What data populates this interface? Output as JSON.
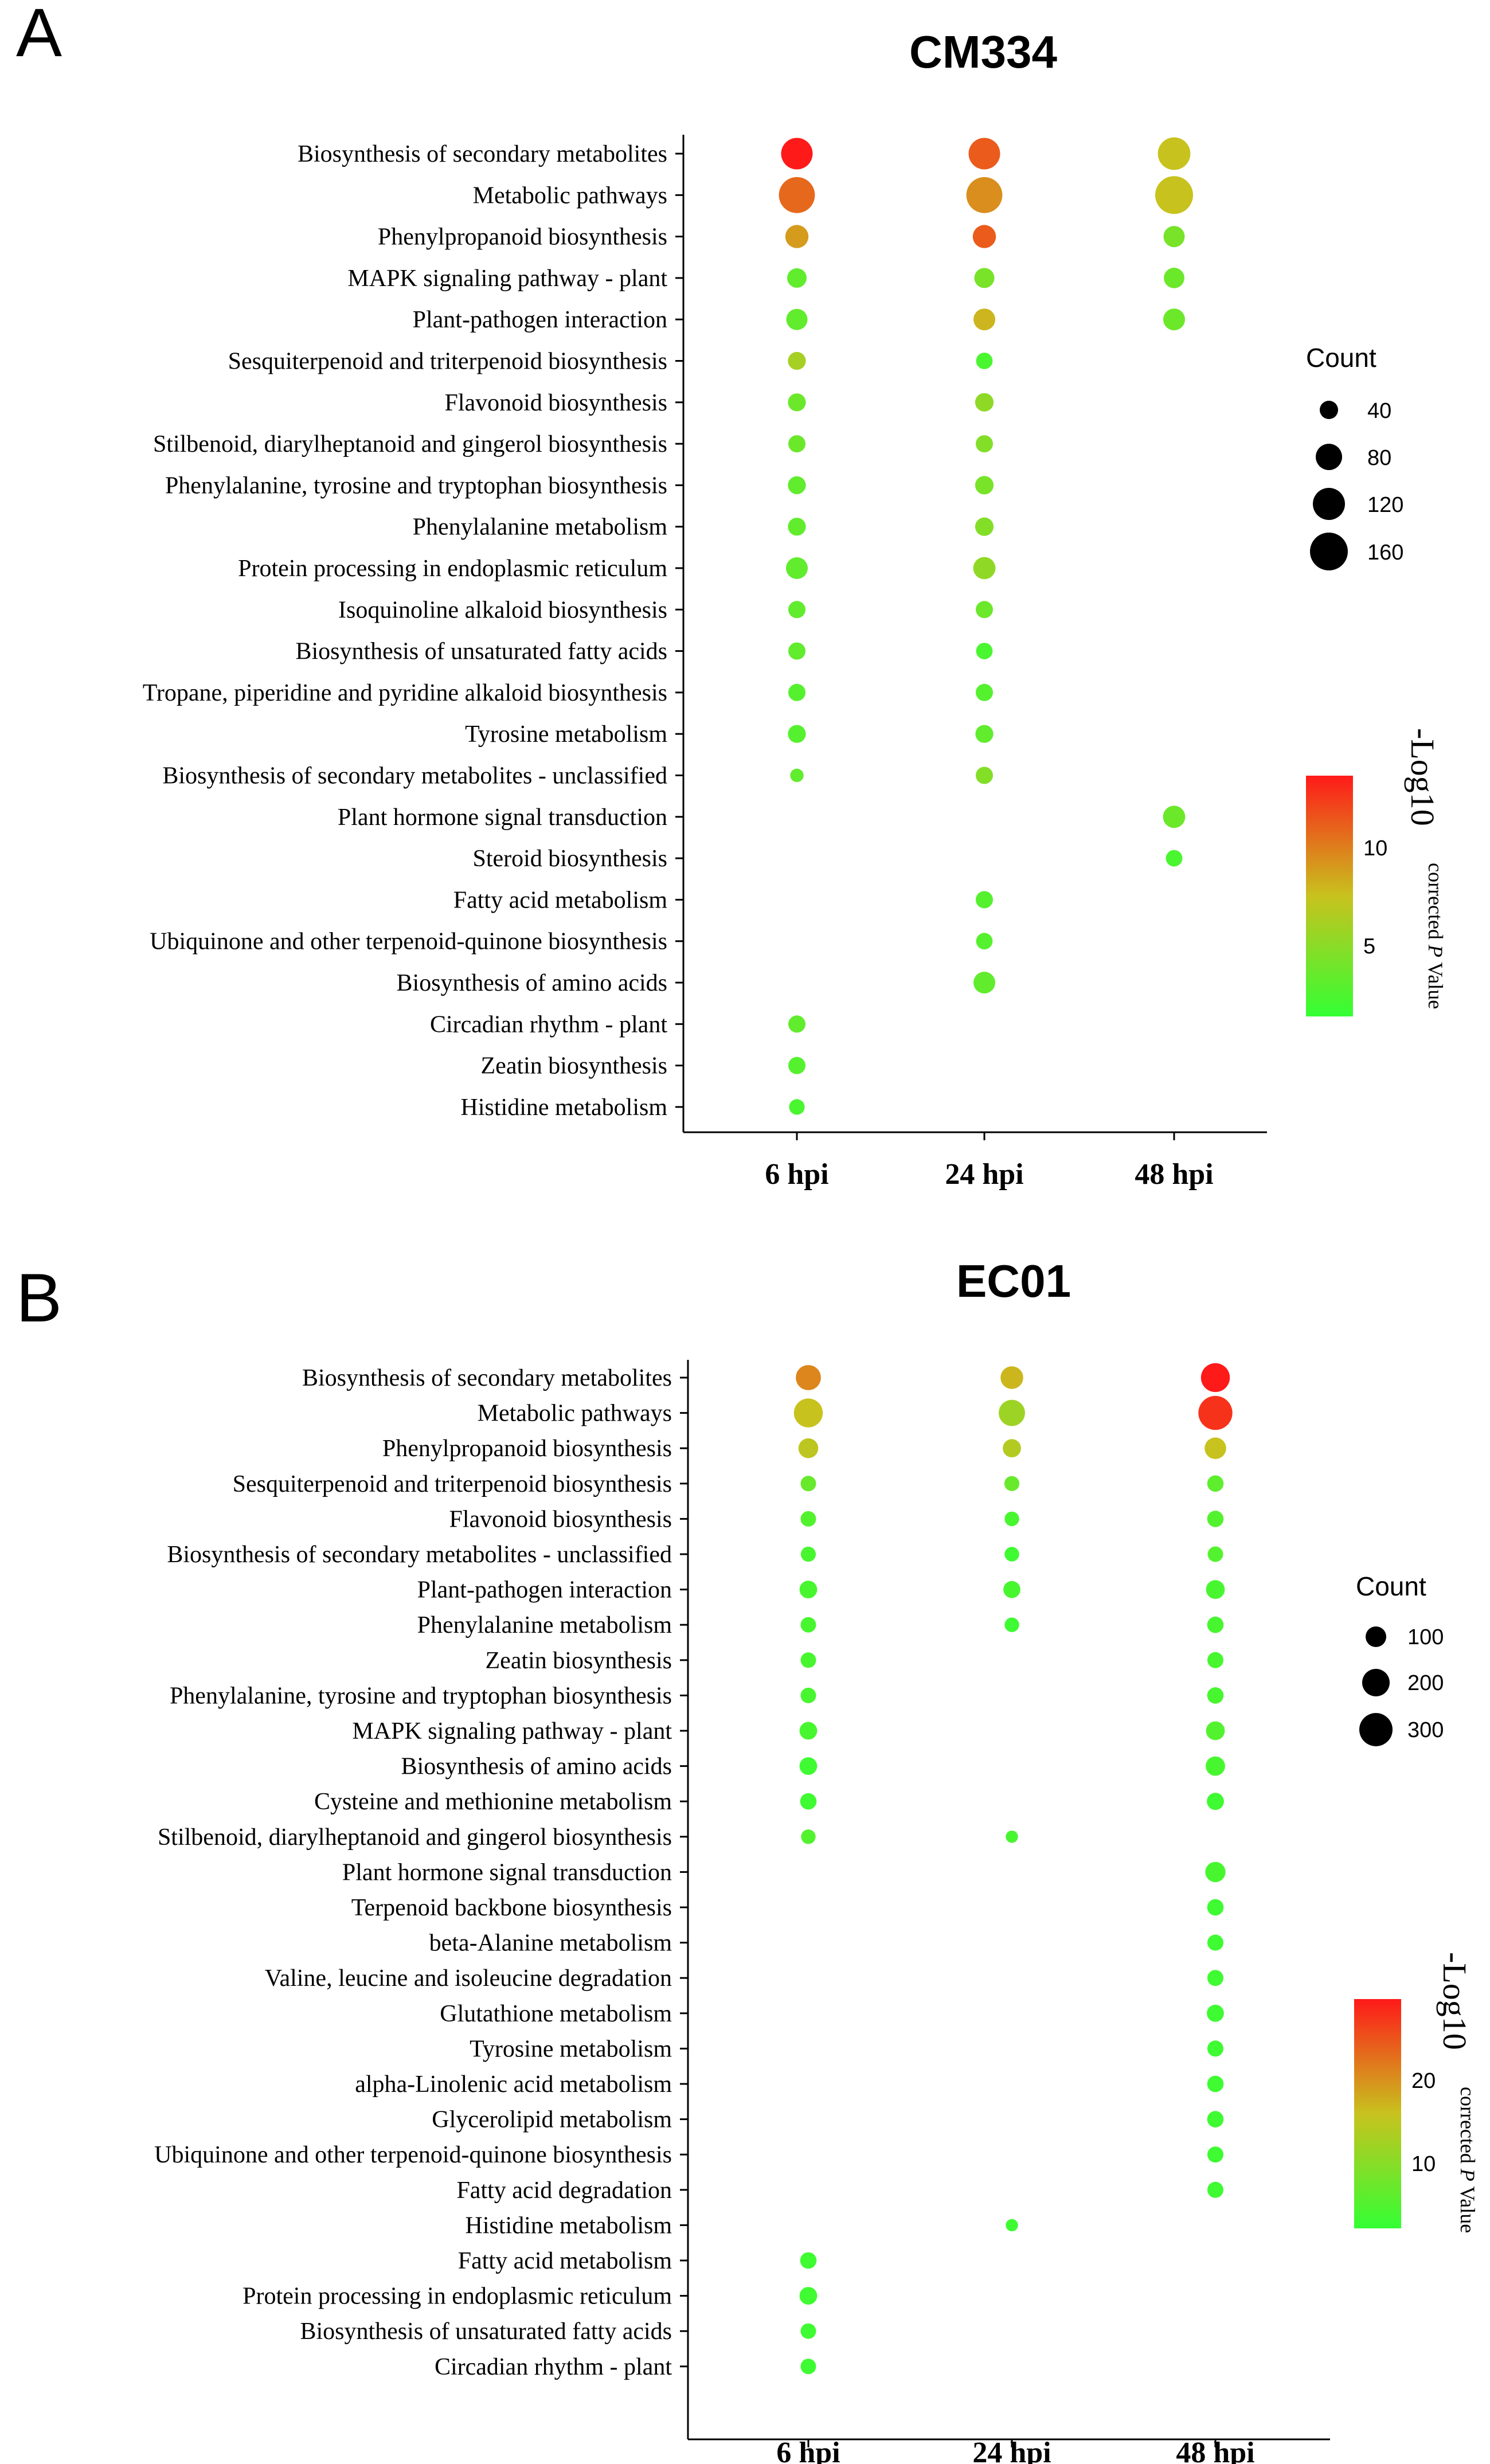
{
  "panels": [
    {
      "letter": "A",
      "title": "CM334",
      "legend_size_title": "Count",
      "legend_size_values": [
        40,
        80,
        120,
        160
      ],
      "colorbar_title": "-Log10",
      "colorbar_subtitle_pre": "corrected ",
      "colorbar_subtitle_p": "P",
      "colorbar_subtitle_post": " Value",
      "colorbar_ticks": [
        5,
        10
      ]
    },
    {
      "letter": "B",
      "title": "EC01",
      "legend_size_title": "Count",
      "legend_size_values": [
        100,
        200,
        300
      ],
      "colorbar_title": "-Log10",
      "colorbar_subtitle_pre": "corrected ",
      "colorbar_subtitle_p": "P",
      "colorbar_subtitle_post": " Value",
      "colorbar_ticks": [
        10,
        20
      ]
    }
  ],
  "colors": {
    "low": "#33ff33",
    "mid": "#c8c21e",
    "high": "#ff1a1a",
    "axis": "#000000"
  },
  "chart_data": [
    {
      "type": "scatter",
      "subtype": "bubble",
      "title": "CM334",
      "x": [
        "6 hpi",
        "24 hpi",
        "48 hpi"
      ],
      "size_label": "Count",
      "color_label": "-Log10 corrected P Value",
      "color_range": [
        1,
        14
      ],
      "size_range": [
        10,
        170
      ],
      "categories": [
        "Biosynthesis of secondary metabolites",
        "Metabolic pathways",
        "Phenylpropanoid biosynthesis",
        "MAPK signaling pathway - plant",
        "Plant-pathogen interaction",
        "Sesquiterpenoid and triterpenoid biosynthesis",
        "Flavonoid biosynthesis",
        "Stilbenoid, diarylheptanoid and gingerol biosynthesis",
        "Phenylalanine, tyrosine and tryptophan biosynthesis",
        "Phenylalanine metabolism",
        "Protein processing in endoplasmic reticulum",
        "Isoquinoline alkaloid biosynthesis",
        "Biosynthesis of unsaturated fatty acids",
        "Tropane, piperidine and pyridine alkaloid biosynthesis",
        "Tyrosine metabolism",
        "Biosynthesis of secondary metabolites - unclassified",
        "Plant hormone signal transduction",
        "Steroid biosynthesis",
        "Fatty acid metabolism",
        "Ubiquinone and other terpenoid-quinone biosynthesis",
        "Biosynthesis of amino acids",
        "Circadian rhythm - plant",
        "Zeatin biosynthesis",
        "Histidine metabolism"
      ],
      "points": [
        {
          "pathway": "Biosynthesis of secondary metabolites",
          "x": "6 hpi",
          "count": 105,
          "logp": 14
        },
        {
          "pathway": "Biosynthesis of secondary metabolites",
          "x": "24 hpi",
          "count": 105,
          "logp": 11.5
        },
        {
          "pathway": "Biosynthesis of secondary metabolites",
          "x": "48 hpi",
          "count": 115,
          "logp": 7.5
        },
        {
          "pathway": "Metabolic pathways",
          "x": "6 hpi",
          "count": 150,
          "logp": 11
        },
        {
          "pathway": "Metabolic pathways",
          "x": "24 hpi",
          "count": 150,
          "logp": 9.5
        },
        {
          "pathway": "Metabolic pathways",
          "x": "48 hpi",
          "count": 170,
          "logp": 7.5
        },
        {
          "pathway": "Phenylpropanoid biosynthesis",
          "x": "6 hpi",
          "count": 45,
          "logp": 9
        },
        {
          "pathway": "Phenylpropanoid biosynthesis",
          "x": "24 hpi",
          "count": 45,
          "logp": 11.5
        },
        {
          "pathway": "Phenylpropanoid biosynthesis",
          "x": "48 hpi",
          "count": 35,
          "logp": 4
        },
        {
          "pathway": "MAPK signaling pathway - plant",
          "x": "6 hpi",
          "count": 28,
          "logp": 3
        },
        {
          "pathway": "MAPK signaling pathway - plant",
          "x": "24 hpi",
          "count": 30,
          "logp": 4
        },
        {
          "pathway": "MAPK signaling pathway - plant",
          "x": "48 hpi",
          "count": 32,
          "logp": 3.5
        },
        {
          "pathway": "Plant-pathogen interaction",
          "x": "6 hpi",
          "count": 35,
          "logp": 3
        },
        {
          "pathway": "Plant-pathogen interaction",
          "x": "24 hpi",
          "count": 38,
          "logp": 8
        },
        {
          "pathway": "Plant-pathogen interaction",
          "x": "48 hpi",
          "count": 38,
          "logp": 3.5
        },
        {
          "pathway": "Sesquiterpenoid and triterpenoid biosynthesis",
          "x": "6 hpi",
          "count": 22,
          "logp": 6
        },
        {
          "pathway": "Sesquiterpenoid and triterpenoid biosynthesis",
          "x": "24 hpi",
          "count": 18,
          "logp": 2
        },
        {
          "pathway": "Flavonoid biosynthesis",
          "x": "6 hpi",
          "count": 22,
          "logp": 3.5
        },
        {
          "pathway": "Flavonoid biosynthesis",
          "x": "24 hpi",
          "count": 24,
          "logp": 5
        },
        {
          "pathway": "Stilbenoid, diarylheptanoid and gingerol biosynthesis",
          "x": "6 hpi",
          "count": 20,
          "logp": 3.5
        },
        {
          "pathway": "Stilbenoid, diarylheptanoid and gingerol biosynthesis",
          "x": "24 hpi",
          "count": 20,
          "logp": 4.5
        },
        {
          "pathway": "Phenylalanine, tyrosine and tryptophan biosynthesis",
          "x": "6 hpi",
          "count": 22,
          "logp": 3
        },
        {
          "pathway": "Phenylalanine, tyrosine and tryptophan biosynthesis",
          "x": "24 hpi",
          "count": 24,
          "logp": 4
        },
        {
          "pathway": "Phenylalanine metabolism",
          "x": "6 hpi",
          "count": 22,
          "logp": 3
        },
        {
          "pathway": "Phenylalanine metabolism",
          "x": "24 hpi",
          "count": 24,
          "logp": 4.5
        },
        {
          "pathway": "Protein processing in endoplasmic reticulum",
          "x": "6 hpi",
          "count": 38,
          "logp": 3
        },
        {
          "pathway": "Protein processing in endoplasmic reticulum",
          "x": "24 hpi",
          "count": 40,
          "logp": 5
        },
        {
          "pathway": "Isoquinoline alkaloid biosynthesis",
          "x": "6 hpi",
          "count": 20,
          "logp": 3
        },
        {
          "pathway": "Isoquinoline alkaloid biosynthesis",
          "x": "24 hpi",
          "count": 20,
          "logp": 3.5
        },
        {
          "pathway": "Biosynthesis of unsaturated fatty acids",
          "x": "6 hpi",
          "count": 20,
          "logp": 3
        },
        {
          "pathway": "Biosynthesis of unsaturated fatty acids",
          "x": "24 hpi",
          "count": 18,
          "logp": 2
        },
        {
          "pathway": "Tropane, piperidine and pyridine alkaloid biosynthesis",
          "x": "6 hpi",
          "count": 20,
          "logp": 2.5
        },
        {
          "pathway": "Tropane, piperidine and pyridine alkaloid biosynthesis",
          "x": "24 hpi",
          "count": 20,
          "logp": 2.5
        },
        {
          "pathway": "Tyrosine metabolism",
          "x": "6 hpi",
          "count": 22,
          "logp": 2.5
        },
        {
          "pathway": "Tyrosine metabolism",
          "x": "24 hpi",
          "count": 22,
          "logp": 3
        },
        {
          "pathway": "Biosynthesis of secondary metabolites - unclassified",
          "x": "6 hpi",
          "count": 12,
          "logp": 3
        },
        {
          "pathway": "Biosynthesis of secondary metabolites - unclassified",
          "x": "24 hpi",
          "count": 20,
          "logp": 4.5
        },
        {
          "pathway": "Plant hormone signal transduction",
          "x": "48 hpi",
          "count": 40,
          "logp": 3.5
        },
        {
          "pathway": "Steroid biosynthesis",
          "x": "48 hpi",
          "count": 18,
          "logp": 2
        },
        {
          "pathway": "Fatty acid metabolism",
          "x": "24 hpi",
          "count": 20,
          "logp": 2.5
        },
        {
          "pathway": "Ubiquinone and other terpenoid-quinone biosynthesis",
          "x": "24 hpi",
          "count": 18,
          "logp": 2.5
        },
        {
          "pathway": "Biosynthesis of amino acids",
          "x": "24 hpi",
          "count": 38,
          "logp": 3
        },
        {
          "pathway": "Circadian rhythm - plant",
          "x": "6 hpi",
          "count": 20,
          "logp": 3
        },
        {
          "pathway": "Zeatin biosynthesis",
          "x": "6 hpi",
          "count": 20,
          "logp": 2.5
        },
        {
          "pathway": "Histidine metabolism",
          "x": "6 hpi",
          "count": 16,
          "logp": 2
        }
      ]
    },
    {
      "type": "scatter",
      "subtype": "bubble",
      "title": "EC01",
      "x": [
        "6 hpi",
        "24 hpi",
        "48 hpi"
      ],
      "size_label": "Count",
      "color_label": "-Log10 corrected P Value",
      "color_range": [
        1,
        29
      ],
      "size_range": [
        10,
        330
      ],
      "categories": [
        "Biosynthesis of secondary metabolites",
        "Metabolic pathways",
        "Phenylpropanoid biosynthesis",
        "Sesquiterpenoid and triterpenoid biosynthesis",
        "Flavonoid biosynthesis",
        "Biosynthesis of secondary metabolites - unclassified",
        "Plant-pathogen interaction",
        "Phenylalanine metabolism",
        "Zeatin biosynthesis",
        "Phenylalanine, tyrosine and tryptophan biosynthesis",
        "MAPK signaling pathway - plant",
        "Biosynthesis of amino acids",
        "Cysteine and methionine metabolism",
        "Stilbenoid, diarylheptanoid and gingerol biosynthesis",
        "Plant hormone signal transduction",
        "Terpenoid backbone biosynthesis",
        "beta-Alanine metabolism",
        "Valine, leucine and isoleucine degradation",
        "Glutathione metabolism",
        "Tyrosine metabolism",
        "alpha-Linolenic acid metabolism",
        "Glycerolipid metabolism",
        "Ubiquinone and other terpenoid-quinone biosynthesis",
        "Fatty acid degradation",
        "Histidine metabolism",
        "Fatty acid metabolism",
        "Protein processing in endoplasmic reticulum",
        "Biosynthesis of unsaturated fatty acids",
        "Circadian rhythm - plant"
      ],
      "points": [
        {
          "pathway": "Biosynthesis of secondary metabolites",
          "x": "6 hpi",
          "count": 130,
          "logp": 20
        },
        {
          "pathway": "Biosynthesis of secondary metabolites",
          "x": "24 hpi",
          "count": 95,
          "logp": 16
        },
        {
          "pathway": "Biosynthesis of secondary metabolites",
          "x": "48 hpi",
          "count": 200,
          "logp": 29
        },
        {
          "pathway": "Metabolic pathways",
          "x": "6 hpi",
          "count": 200,
          "logp": 15
        },
        {
          "pathway": "Metabolic pathways",
          "x": "24 hpi",
          "count": 150,
          "logp": 11
        },
        {
          "pathway": "Metabolic pathways",
          "x": "48 hpi",
          "count": 320,
          "logp": 27
        },
        {
          "pathway": "Phenylpropanoid biosynthesis",
          "x": "6 hpi",
          "count": 60,
          "logp": 14
        },
        {
          "pathway": "Phenylpropanoid biosynthesis",
          "x": "24 hpi",
          "count": 45,
          "logp": 13
        },
        {
          "pathway": "Phenylpropanoid biosynthesis",
          "x": "48 hpi",
          "count": 80,
          "logp": 15
        },
        {
          "pathway": "Sesquiterpenoid and triterpenoid biosynthesis",
          "x": "6 hpi",
          "count": 25,
          "logp": 6
        },
        {
          "pathway": "Sesquiterpenoid and triterpenoid biosynthesis",
          "x": "24 hpi",
          "count": 22,
          "logp": 6
        },
        {
          "pathway": "Sesquiterpenoid and triterpenoid biosynthesis",
          "x": "48 hpi",
          "count": 30,
          "logp": 5
        },
        {
          "pathway": "Flavonoid biosynthesis",
          "x": "6 hpi",
          "count": 25,
          "logp": 4
        },
        {
          "pathway": "Flavonoid biosynthesis",
          "x": "24 hpi",
          "count": 20,
          "logp": 3
        },
        {
          "pathway": "Flavonoid biosynthesis",
          "x": "48 hpi",
          "count": 30,
          "logp": 4
        },
        {
          "pathway": "Biosynthesis of secondary metabolites - unclassified",
          "x": "6 hpi",
          "count": 22,
          "logp": 3
        },
        {
          "pathway": "Biosynthesis of secondary metabolites - unclassified",
          "x": "24 hpi",
          "count": 20,
          "logp": 2
        },
        {
          "pathway": "Biosynthesis of secondary metabolites - unclassified",
          "x": "48 hpi",
          "count": 25,
          "logp": 4
        },
        {
          "pathway": "Plant-pathogen interaction",
          "x": "6 hpi",
          "count": 40,
          "logp": 3
        },
        {
          "pathway": "Plant-pathogen interaction",
          "x": "24 hpi",
          "count": 35,
          "logp": 3
        },
        {
          "pathway": "Plant-pathogen interaction",
          "x": "48 hpi",
          "count": 50,
          "logp": 3
        },
        {
          "pathway": "Phenylalanine metabolism",
          "x": "6 hpi",
          "count": 25,
          "logp": 3
        },
        {
          "pathway": "Phenylalanine metabolism",
          "x": "24 hpi",
          "count": 20,
          "logp": 2
        },
        {
          "pathway": "Phenylalanine metabolism",
          "x": "48 hpi",
          "count": 30,
          "logp": 3
        },
        {
          "pathway": "Zeatin biosynthesis",
          "x": "6 hpi",
          "count": 25,
          "logp": 3
        },
        {
          "pathway": "Zeatin biosynthesis",
          "x": "48 hpi",
          "count": 28,
          "logp": 3
        },
        {
          "pathway": "Phenylalanine, tyrosine and tryptophan biosynthesis",
          "x": "6 hpi",
          "count": 25,
          "logp": 3
        },
        {
          "pathway": "Phenylalanine, tyrosine and tryptophan biosynthesis",
          "x": "48 hpi",
          "count": 30,
          "logp": 3
        },
        {
          "pathway": "MAPK signaling pathway - plant",
          "x": "6 hpi",
          "count": 40,
          "logp": 3
        },
        {
          "pathway": "MAPK signaling pathway - plant",
          "x": "48 hpi",
          "count": 50,
          "logp": 4
        },
        {
          "pathway": "Biosynthesis of amino acids",
          "x": "6 hpi",
          "count": 40,
          "logp": 2
        },
        {
          "pathway": "Biosynthesis of amino acids",
          "x": "48 hpi",
          "count": 55,
          "logp": 3
        },
        {
          "pathway": "Cysteine and methionine metabolism",
          "x": "6 hpi",
          "count": 30,
          "logp": 2
        },
        {
          "pathway": "Cysteine and methionine metabolism",
          "x": "48 hpi",
          "count": 35,
          "logp": 2
        },
        {
          "pathway": "Stilbenoid, diarylheptanoid and gingerol biosynthesis",
          "x": "6 hpi",
          "count": 20,
          "logp": 4
        },
        {
          "pathway": "Stilbenoid, diarylheptanoid and gingerol biosynthesis",
          "x": "24 hpi",
          "count": 12,
          "logp": 3
        },
        {
          "pathway": "Plant hormone signal transduction",
          "x": "48 hpi",
          "count": 65,
          "logp": 3
        },
        {
          "pathway": "Terpenoid backbone biosynthesis",
          "x": "48 hpi",
          "count": 30,
          "logp": 2
        },
        {
          "pathway": "beta-Alanine metabolism",
          "x": "48 hpi",
          "count": 28,
          "logp": 2
        },
        {
          "pathway": "Valine, leucine and isoleucine degradation",
          "x": "48 hpi",
          "count": 28,
          "logp": 2
        },
        {
          "pathway": "Glutathione metabolism",
          "x": "48 hpi",
          "count": 35,
          "logp": 2
        },
        {
          "pathway": "Tyrosine metabolism",
          "x": "48 hpi",
          "count": 28,
          "logp": 2
        },
        {
          "pathway": "alpha-Linolenic acid metabolism",
          "x": "48 hpi",
          "count": 30,
          "logp": 2
        },
        {
          "pathway": "Glycerolipid metabolism",
          "x": "48 hpi",
          "count": 30,
          "logp": 2
        },
        {
          "pathway": "Ubiquinone and other terpenoid-quinone biosynthesis",
          "x": "48 hpi",
          "count": 28,
          "logp": 2
        },
        {
          "pathway": "Fatty acid degradation",
          "x": "48 hpi",
          "count": 28,
          "logp": 2
        },
        {
          "pathway": "Histidine metabolism",
          "x": "24 hpi",
          "count": 12,
          "logp": 2
        },
        {
          "pathway": "Fatty acid metabolism",
          "x": "6 hpi",
          "count": 30,
          "logp": 2
        },
        {
          "pathway": "Protein processing in endoplasmic reticulum",
          "x": "6 hpi",
          "count": 40,
          "logp": 2
        },
        {
          "pathway": "Biosynthesis of unsaturated fatty acids",
          "x": "6 hpi",
          "count": 25,
          "logp": 2
        },
        {
          "pathway": "Circadian rhythm - plant",
          "x": "6 hpi",
          "count": 25,
          "logp": 2
        }
      ]
    }
  ]
}
